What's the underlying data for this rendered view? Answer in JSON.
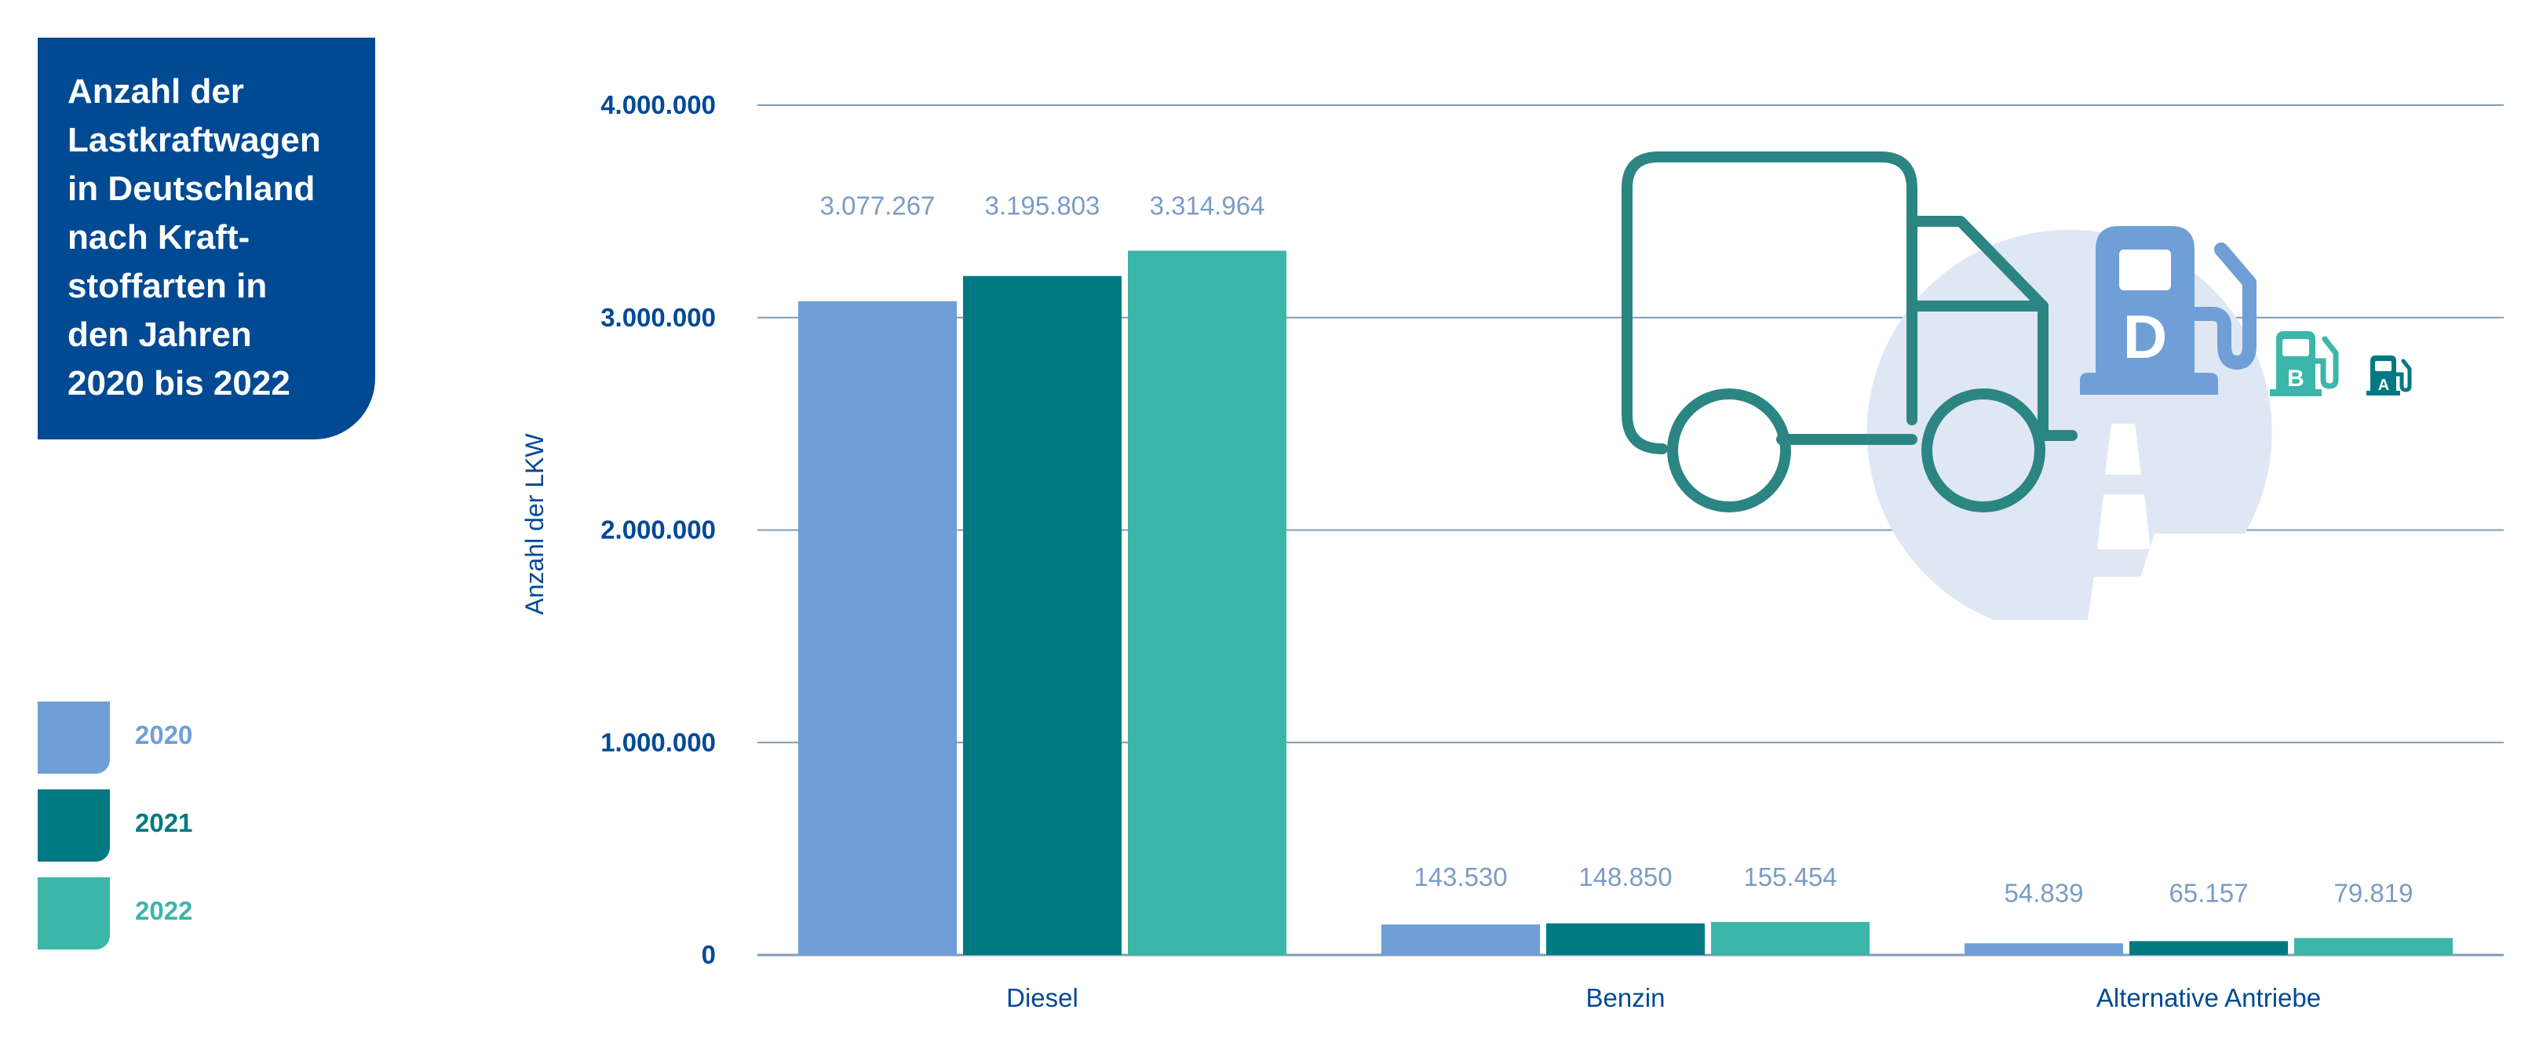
{
  "title": "Anzahl der\nLastkraftwagen\nin Deutschland\nnach Kraft-\nstoffarten in\nden Jahren\n2020 bis 2022",
  "legend": [
    {
      "label": "2020",
      "color": "#6f9fd6"
    },
    {
      "label": "2021",
      "color": "#007983"
    },
    {
      "label": "2022",
      "color": "#3cb6a9"
    }
  ],
  "colors": {
    "axis_text": "#004a94",
    "data_label": "#7a9cc6",
    "grid": "#7f9cb4",
    "illustration_circle": "#dfe7f4",
    "truck": "#2b8583"
  },
  "icons": [
    "truck-icon",
    "fuel-pump-diesel-icon",
    "fuel-pump-benzin-icon",
    "fuel-pump-alternative-icon"
  ],
  "chart_data": {
    "type": "bar",
    "title": "Anzahl der Lastkraftwagen in Deutschland nach Kraftstoffarten in den Jahren 2020 bis 2022",
    "xlabel": "",
    "ylabel": "Anzahl der LKW",
    "ylim": [
      0,
      4000000
    ],
    "yticks": [
      0,
      1000000,
      2000000,
      3000000,
      4000000
    ],
    "ytick_labels": [
      "0",
      "1.000.000",
      "2.000.000",
      "3.000.000",
      "4.000.000"
    ],
    "grid": true,
    "legend_position": "left",
    "categories": [
      "Diesel",
      "Benzin",
      "Alternative Antriebe"
    ],
    "series": [
      {
        "name": "2020",
        "values": [
          3077267,
          143530,
          54839
        ],
        "labels": [
          "3.077.267",
          "143.530",
          "54.839"
        ]
      },
      {
        "name": "2021",
        "values": [
          3195803,
          148850,
          65157
        ],
        "labels": [
          "3.195.803",
          "148.850",
          "65.157"
        ]
      },
      {
        "name": "2022",
        "values": [
          3314964,
          155454,
          79819
        ],
        "labels": [
          "3.314.964",
          "155.454",
          "79.819"
        ]
      }
    ]
  },
  "pump_letters": {
    "diesel": "D",
    "benzin": "B",
    "alternative": "A"
  }
}
